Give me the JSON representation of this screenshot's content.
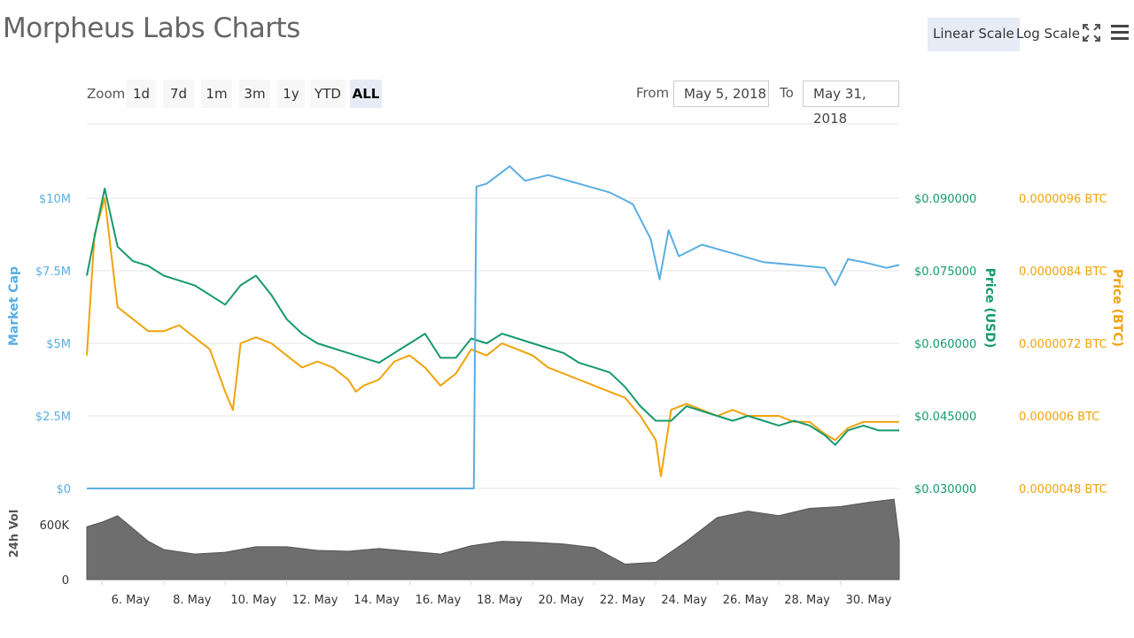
{
  "title": "Morpheus Labs Charts",
  "controls": {
    "linear_scale": "Linear Scale",
    "log_scale": "Log Scale",
    "zoom_label": "Zoom",
    "zoom_options": [
      "1d",
      "7d",
      "1m",
      "3m",
      "1y",
      "YTD",
      "ALL"
    ],
    "zoom_selected": "ALL",
    "from_label": "From",
    "from_value": "May 5, 2018",
    "to_label": "To",
    "to_value": "May 31, 2018"
  },
  "icons": {
    "expand": "fullscreen-expand-icon",
    "menu": "hamburger-menu-icon"
  },
  "colors": {
    "market_cap": "#5aaee1",
    "price_usd": "#169a6f",
    "price_btc": "#f0a30a",
    "volume": "#6e6e6e"
  },
  "chart_data": [
    {
      "type": "line",
      "title": "",
      "xlabel": "",
      "x_ticks": [
        "6. May",
        "8. May",
        "10. May",
        "12. May",
        "14. May",
        "16. May",
        "18. May",
        "20. May",
        "22. May",
        "24. May",
        "26. May",
        "28. May",
        "30. May"
      ],
      "xlim": [
        "2018-05-05T12:00",
        "2018-05-31T22:00"
      ],
      "axes": {
        "market_cap": {
          "label": "Market Cap",
          "ticks": [
            "$0",
            "$2.5M",
            "$5M",
            "$7.5M",
            "$10M"
          ],
          "ylim": [
            0,
            10000000
          ]
        },
        "price_usd": {
          "label": "Price (USD)",
          "ticks": [
            "$0.030000",
            "$0.045000",
            "$0.060000",
            "$0.075000",
            "$0.090000"
          ],
          "ylim": [
            0.03,
            0.09
          ]
        },
        "price_btc": {
          "label": "Price (BTC)",
          "ticks": [
            "0.0000048 BTC",
            "0.000006 BTC",
            "0.0000072 BTC",
            "0.0000084 BTC",
            "0.0000096 BTC"
          ],
          "ylim": [
            4.8e-06,
            9.6e-06
          ]
        }
      },
      "grid": true,
      "series": [
        {
          "name": "Market Cap",
          "axis": "market_cap",
          "x": [
            "2018-05-05T12:00",
            "2018-05-07T00:00",
            "2018-05-09T00:00",
            "2018-05-11T00:00",
            "2018-05-13T00:00",
            "2018-05-15T00:00",
            "2018-05-17T00:00",
            "2018-05-18T02:00",
            "2018-05-18T04:00",
            "2018-05-18T12:00",
            "2018-05-19T06:00",
            "2018-05-19T18:00",
            "2018-05-20T12:00",
            "2018-05-21T12:00",
            "2018-05-22T12:00",
            "2018-05-23T06:00",
            "2018-05-23T20:00",
            "2018-05-24T03:00",
            "2018-05-24T10:00",
            "2018-05-24T18:00",
            "2018-05-25T12:00",
            "2018-05-26T12:00",
            "2018-05-27T12:00",
            "2018-05-28T12:00",
            "2018-05-29T12:00",
            "2018-05-29T20:00",
            "2018-05-30T06:00",
            "2018-05-30T18:00",
            "2018-05-31T12:00",
            "2018-05-31T22:00"
          ],
          "values": [
            0,
            0,
            0,
            0,
            0,
            0,
            0,
            0,
            10400000,
            10500000,
            11100000,
            10600000,
            10800000,
            10500000,
            10200000,
            9800000,
            8600000,
            7200000,
            8900000,
            8000000,
            8400000,
            8100000,
            7800000,
            7700000,
            7600000,
            7000000,
            7900000,
            7800000,
            7600000,
            7700000
          ]
        },
        {
          "name": "Price (USD)",
          "axis": "price_usd",
          "x": [
            "2018-05-05T12:00",
            "2018-05-05T18:00",
            "2018-05-06T02:00",
            "2018-05-06T12:00",
            "2018-05-07T00:00",
            "2018-05-07T12:00",
            "2018-05-08T00:00",
            "2018-05-08T12:00",
            "2018-05-09T00:00",
            "2018-05-09T12:00",
            "2018-05-10T00:00",
            "2018-05-10T12:00",
            "2018-05-11T00:00",
            "2018-05-11T12:00",
            "2018-05-12T00:00",
            "2018-05-12T12:00",
            "2018-05-13T00:00",
            "2018-05-13T12:00",
            "2018-05-14T00:00",
            "2018-05-14T12:00",
            "2018-05-15T00:00",
            "2018-05-15T12:00",
            "2018-05-16T00:00",
            "2018-05-16T12:00",
            "2018-05-17T00:00",
            "2018-05-17T12:00",
            "2018-05-18T00:00",
            "2018-05-18T12:00",
            "2018-05-19T00:00",
            "2018-05-19T12:00",
            "2018-05-20T00:00",
            "2018-05-20T12:00",
            "2018-05-21T00:00",
            "2018-05-21T12:00",
            "2018-05-22T00:00",
            "2018-05-22T12:00",
            "2018-05-23T00:00",
            "2018-05-23T12:00",
            "2018-05-24T00:00",
            "2018-05-24T12:00",
            "2018-05-25T00:00",
            "2018-05-25T12:00",
            "2018-05-26T00:00",
            "2018-05-26T12:00",
            "2018-05-27T00:00",
            "2018-05-27T12:00",
            "2018-05-28T00:00",
            "2018-05-28T12:00",
            "2018-05-29T00:00",
            "2018-05-29T12:00",
            "2018-05-29T20:00",
            "2018-05-30T06:00",
            "2018-05-30T18:00",
            "2018-05-31T06:00",
            "2018-05-31T22:00"
          ],
          "values": [
            0.074,
            0.082,
            0.092,
            0.08,
            0.077,
            0.076,
            0.074,
            0.073,
            0.072,
            0.07,
            0.068,
            0.072,
            0.074,
            0.07,
            0.065,
            0.062,
            0.06,
            0.059,
            0.058,
            0.057,
            0.056,
            0.058,
            0.06,
            0.062,
            0.057,
            0.057,
            0.061,
            0.06,
            0.062,
            0.061,
            0.06,
            0.059,
            0.058,
            0.056,
            0.055,
            0.054,
            0.051,
            0.047,
            0.044,
            0.044,
            0.047,
            0.046,
            0.045,
            0.044,
            0.045,
            0.044,
            0.043,
            0.044,
            0.043,
            0.041,
            0.039,
            0.042,
            0.043,
            0.042,
            0.042
          ]
        },
        {
          "name": "Price (BTC)",
          "axis": "price_btc",
          "x": [
            "2018-05-05T12:00",
            "2018-05-05T18:00",
            "2018-05-06T02:00",
            "2018-05-06T12:00",
            "2018-05-07T00:00",
            "2018-05-07T12:00",
            "2018-05-08T00:00",
            "2018-05-08T12:00",
            "2018-05-09T00:00",
            "2018-05-09T12:00",
            "2018-05-10T00:00",
            "2018-05-10T06:00",
            "2018-05-10T12:00",
            "2018-05-11T00:00",
            "2018-05-11T12:00",
            "2018-05-12T00:00",
            "2018-05-12T12:00",
            "2018-05-13T00:00",
            "2018-05-13T12:00",
            "2018-05-14T00:00",
            "2018-05-14T06:00",
            "2018-05-14T12:00",
            "2018-05-15T00:00",
            "2018-05-15T12:00",
            "2018-05-16T00:00",
            "2018-05-16T12:00",
            "2018-05-17T00:00",
            "2018-05-17T12:00",
            "2018-05-18T00:00",
            "2018-05-18T12:00",
            "2018-05-19T00:00",
            "2018-05-19T12:00",
            "2018-05-20T00:00",
            "2018-05-20T12:00",
            "2018-05-21T00:00",
            "2018-05-21T12:00",
            "2018-05-22T00:00",
            "2018-05-22T12:00",
            "2018-05-23T00:00",
            "2018-05-23T12:00",
            "2018-05-24T00:00",
            "2018-05-24T04:00",
            "2018-05-24T12:00",
            "2018-05-25T00:00",
            "2018-05-25T12:00",
            "2018-05-26T00:00",
            "2018-05-26T12:00",
            "2018-05-27T00:00",
            "2018-05-27T12:00",
            "2018-05-28T00:00",
            "2018-05-28T12:00",
            "2018-05-29T00:00",
            "2018-05-29T12:00",
            "2018-05-29T20:00",
            "2018-05-30T06:00",
            "2018-05-30T18:00",
            "2018-05-31T06:00",
            "2018-05-31T22:00"
          ],
          "values": [
            7e-06,
            9e-06,
            9.6e-06,
            7.8e-06,
            7.6e-06,
            7.4e-06,
            7.4e-06,
            7.5e-06,
            7.3e-06,
            7.1e-06,
            6.4e-06,
            6.1e-06,
            7.2e-06,
            7.3e-06,
            7.2e-06,
            7e-06,
            6.8e-06,
            6.9e-06,
            6.8e-06,
            6.6e-06,
            6.4e-06,
            6.5e-06,
            6.6e-06,
            6.9e-06,
            7e-06,
            6.8e-06,
            6.5e-06,
            6.7e-06,
            7.1e-06,
            7e-06,
            7.2e-06,
            7.1e-06,
            7e-06,
            6.8e-06,
            6.7e-06,
            6.6e-06,
            6.5e-06,
            6.4e-06,
            6.3e-06,
            6e-06,
            5.6e-06,
            5e-06,
            6.1e-06,
            6.2e-06,
            6.1e-06,
            6e-06,
            6.1e-06,
            6e-06,
            6e-06,
            6e-06,
            5.9e-06,
            5.9e-06,
            5.7e-06,
            5.6e-06,
            5.8e-06,
            5.9e-06,
            5.9e-06,
            5.9e-06
          ]
        }
      ]
    },
    {
      "type": "area",
      "title": "",
      "ylabel": "24h Vol",
      "y_ticks": [
        "0",
        "600K"
      ],
      "ylim": [
        0,
        950000
      ],
      "series": [
        {
          "name": "24h Vol",
          "x": [
            "2018-05-05T12:00",
            "2018-05-06T00:00",
            "2018-05-06T12:00",
            "2018-05-07T00:00",
            "2018-05-07T12:00",
            "2018-05-08T00:00",
            "2018-05-09T00:00",
            "2018-05-10T00:00",
            "2018-05-11T00:00",
            "2018-05-12T00:00",
            "2018-05-13T00:00",
            "2018-05-14T00:00",
            "2018-05-15T00:00",
            "2018-05-16T00:00",
            "2018-05-17T00:00",
            "2018-05-18T00:00",
            "2018-05-19T00:00",
            "2018-05-20T00:00",
            "2018-05-21T00:00",
            "2018-05-22T00:00",
            "2018-05-23T00:00",
            "2018-05-24T00:00",
            "2018-05-25T00:00",
            "2018-05-26T00:00",
            "2018-05-27T00:00",
            "2018-05-28T00:00",
            "2018-05-29T00:00",
            "2018-05-30T00:00",
            "2018-05-31T00:00",
            "2018-05-31T18:00",
            "2018-05-31T22:00"
          ],
          "values": [
            580000,
            630000,
            700000,
            560000,
            420000,
            330000,
            280000,
            300000,
            360000,
            360000,
            320000,
            310000,
            340000,
            310000,
            280000,
            370000,
            420000,
            410000,
            390000,
            350000,
            170000,
            190000,
            420000,
            680000,
            750000,
            700000,
            780000,
            800000,
            850000,
            880000,
            430000
          ]
        }
      ]
    }
  ]
}
